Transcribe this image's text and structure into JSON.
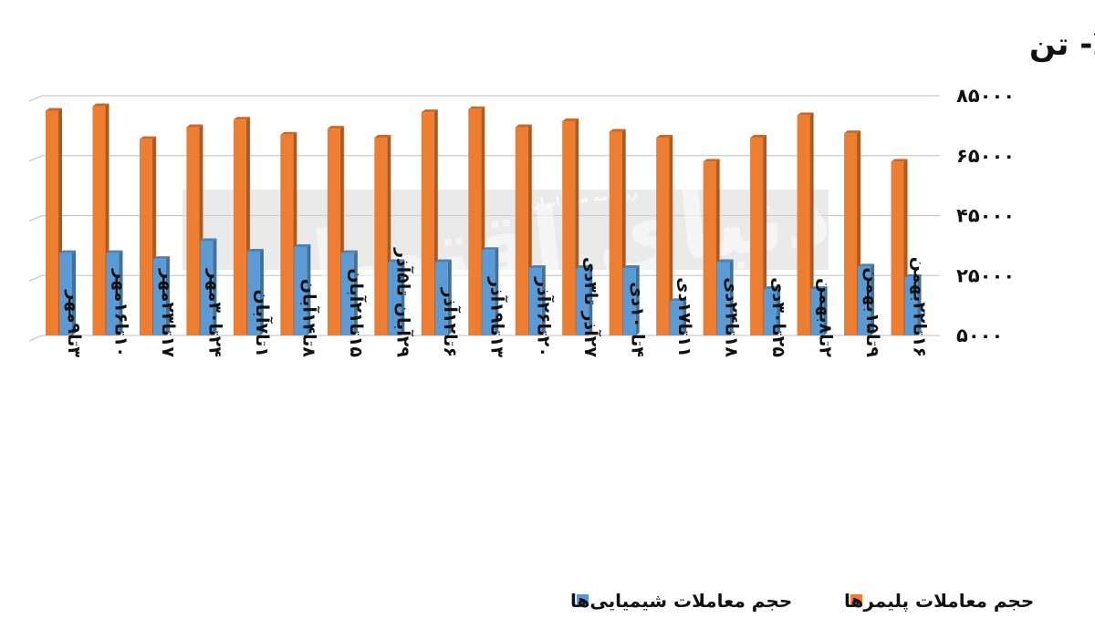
{
  "chart_data": {
    "type": "bar",
    "title": "حجم معاملات هفتگی محصولات پتروشیمیایی بورس کالا- تن",
    "xlabel": "",
    "ylabel": "",
    "ylim": [
      5000,
      85000
    ],
    "y_ticks": [
      "۵۰۰۰",
      "۲۵۰۰۰",
      "۴۵۰۰۰",
      "۶۵۰۰۰",
      "۸۵۰۰۰"
    ],
    "y_tick_values": [
      5000,
      25000,
      45000,
      65000,
      85000
    ],
    "grid": true,
    "legend_position": "bottom",
    "categories": [
      "۳تا۹مهر",
      "۱۰تا۱۶مهر",
      "۱۷تا۲۳مهر",
      "۲۴تا۳۰مهر",
      "۱تا۷آبان",
      "۸تا۱۴آبان",
      "۱۵تا۲۱آبان",
      "۲۹آبان تا۵آذر",
      "۶تا۱۲آذر",
      "۱۳تا۱۹آذر",
      "۲۰تا۲۶آذر",
      "۲۷آذر تا۳دی",
      "۴تا ۱۰دی",
      "۱۱تا۱۷دی",
      "۱۸تا۲۴دی",
      "۲۵تا۳۰دی",
      "۲تا۸بهمن",
      "۹تا۱۵بهمن",
      "۱۶تا۲۲بهمن"
    ],
    "series": [
      {
        "name": "حجم معاملات شیمیایی‌ها",
        "color": "#5b9bd5",
        "values": [
          32500,
          32500,
          30500,
          36500,
          33000,
          34500,
          32500,
          29500,
          29500,
          33500,
          27500,
          27500,
          27500,
          16500,
          29500,
          20500,
          20500,
          28000,
          24500
        ]
      },
      {
        "name": "حجم معاملات پلیمرها",
        "color": "#ed7d31",
        "values": [
          80000,
          81500,
          70500,
          74500,
          77000,
          72000,
          74000,
          71000,
          79500,
          80500,
          74500,
          76500,
          73000,
          71000,
          63000,
          71000,
          78500,
          72500,
          63000
        ]
      }
    ]
  },
  "watermark": {
    "main": "دنیای اقتصاد",
    "sub": "روزنامه صبح ایران"
  }
}
